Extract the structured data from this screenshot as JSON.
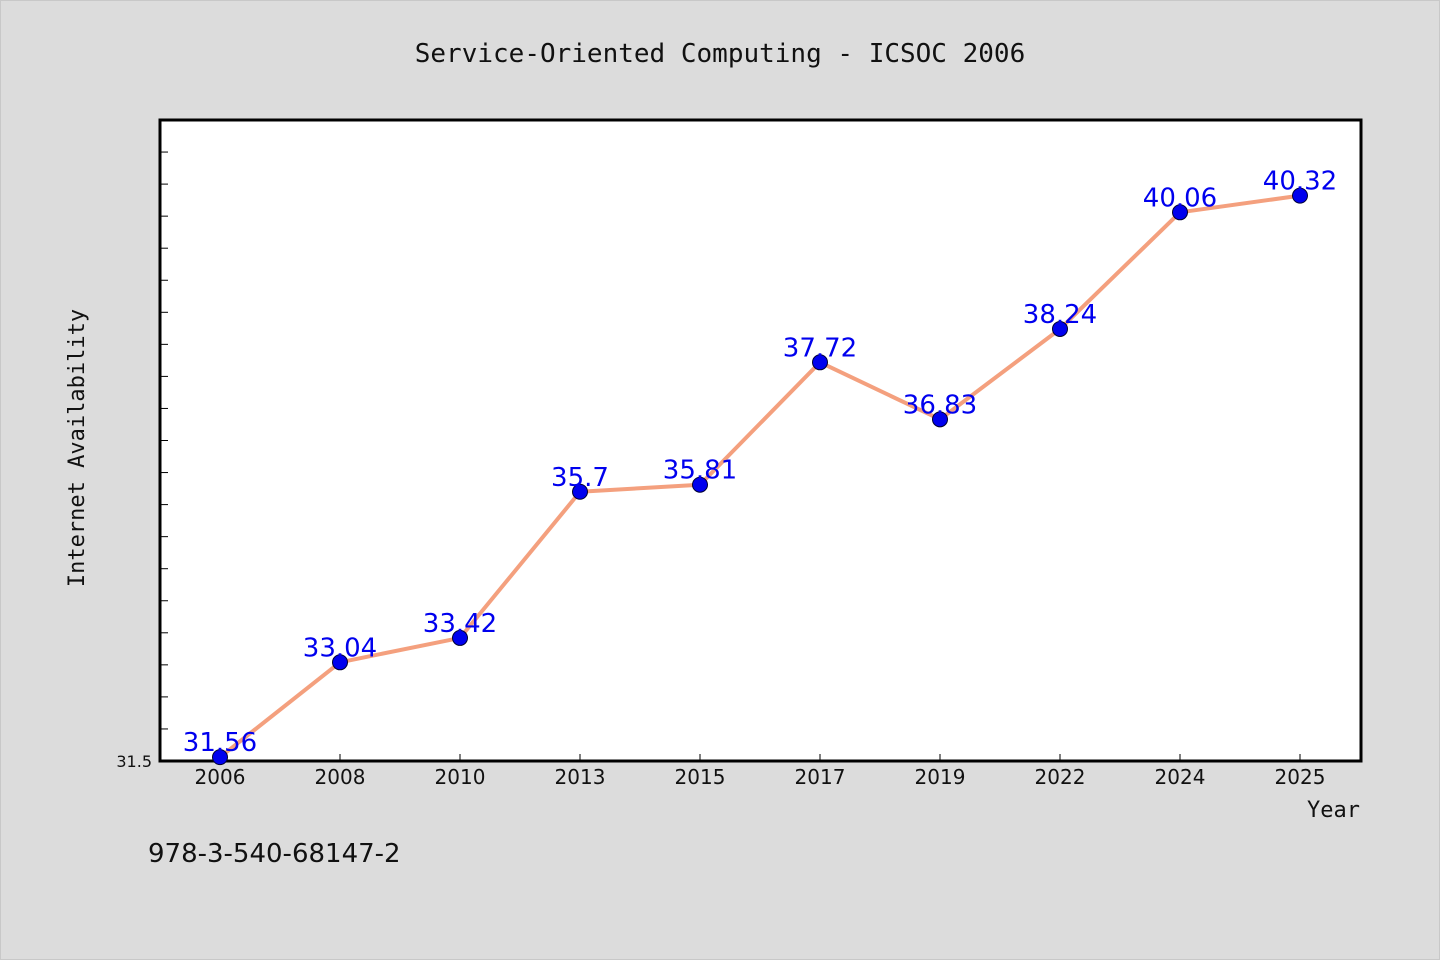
{
  "chart_data": {
    "type": "line",
    "title": "Service-Oriented Computing - ICSOC 2006",
    "xlabel": "Year",
    "ylabel": "Internet Availability",
    "categories": [
      "2006",
      "2008",
      "2010",
      "2013",
      "2015",
      "2017",
      "2019",
      "2022",
      "2024",
      "2025"
    ],
    "values": [
      31.56,
      33.04,
      33.42,
      35.7,
      35.81,
      37.72,
      36.83,
      38.24,
      40.06,
      40.32
    ],
    "data_labels": [
      "31.56",
      "33.04",
      "33.42",
      "35.7",
      "35.81",
      "37.72",
      "36.83",
      "38.24",
      "40.06",
      "40.32"
    ],
    "ylim": [
      31.5,
      41.5
    ],
    "y_tick_labels": [
      "31.5"
    ],
    "grid": false,
    "line_color": "#f4a07e",
    "marker_color": "#0000ee",
    "label_color": "#0000ee"
  },
  "footnote": "978-3-540-68147-2"
}
